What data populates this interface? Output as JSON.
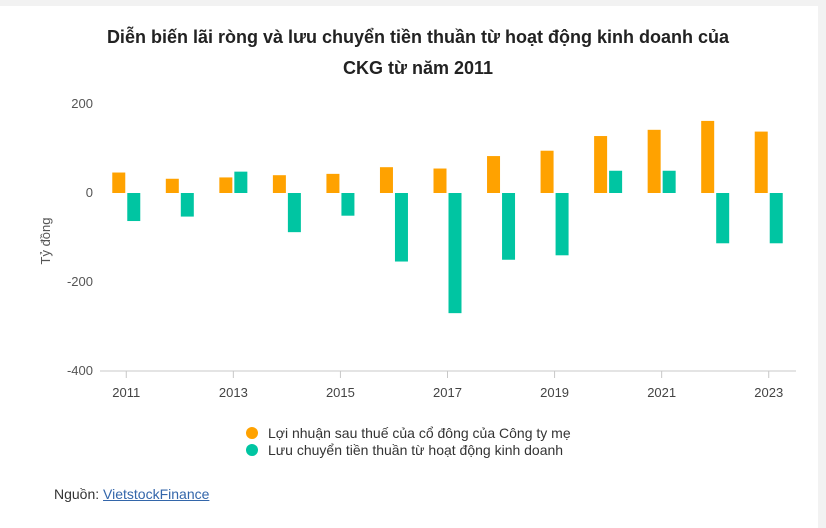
{
  "title_line1": "Diễn biến lãi ròng và lưu chuyển tiền thuần từ hoạt động kinh doanh của",
  "title_line2": "CKG từ năm 2011",
  "source_label": "Nguồn: ",
  "source_link": "VietstockFinance",
  "colors": {
    "profit": "#ffa200",
    "cashflow": "#00c5a2",
    "axis": "#c8c8c8"
  },
  "chart_data": {
    "type": "bar",
    "title": "Diễn biến lãi ròng và lưu chuyển tiền thuần từ hoạt động kinh doanh của CKG từ năm 2011",
    "ylabel": "Tỷ đồng",
    "xlabel": "",
    "ylim": [
      -400,
      200
    ],
    "yticks": [
      200,
      0,
      -200,
      -400
    ],
    "categories": [
      "2011",
      "2012",
      "2013",
      "2014",
      "2015",
      "2016",
      "2017",
      "2018",
      "2019",
      "2020",
      "2021",
      "2022",
      "2023"
    ],
    "xtick_labels": [
      "2011",
      "2013",
      "2015",
      "2017",
      "2019",
      "2021",
      "2023"
    ],
    "grid": false,
    "legend_position": "bottom",
    "series": [
      {
        "name": "Lợi nhuận sau thuế của cổ đông của Công ty mẹ",
        "values": [
          46,
          32,
          35,
          40,
          43,
          58,
          55,
          83,
          95,
          128,
          142,
          162,
          138
        ]
      },
      {
        "name": "Lưu chuyển tiền thuần từ hoạt động kinh doanh",
        "values": [
          -63,
          -53,
          48,
          -88,
          -51,
          -154,
          -270,
          -150,
          -140,
          50,
          50,
          -113,
          -113
        ]
      }
    ]
  }
}
